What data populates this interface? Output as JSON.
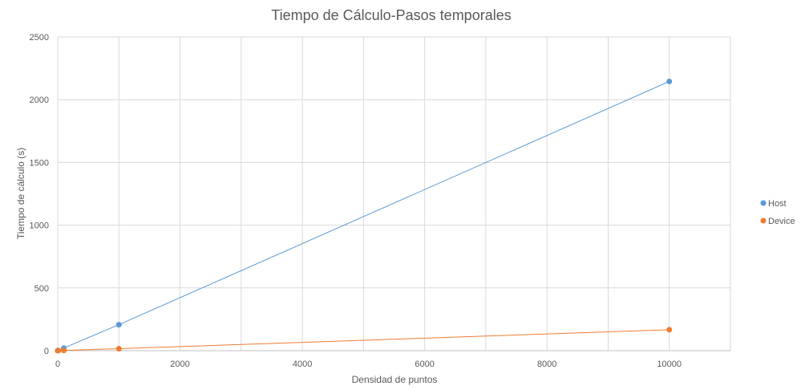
{
  "chart_data": {
    "type": "scatter",
    "title": "Tiempo de Cálculo-Pasos temporales",
    "xlabel": "Densidad de puntos",
    "ylabel": "Tiempo de cálculo (s)",
    "xlim": [
      0,
      11000
    ],
    "ylim": [
      0,
      2500
    ],
    "x_ticks": [
      0,
      2000,
      4000,
      6000,
      8000,
      10000
    ],
    "y_ticks": [
      0,
      500,
      1000,
      1500,
      2000,
      2500
    ],
    "grid": true,
    "legend_position": "right",
    "series": [
      {
        "name": "Host",
        "color": "#5b9bd5",
        "x": [
          0,
          10,
          100,
          1000,
          10000
        ],
        "y": [
          0.2,
          2,
          21,
          207,
          2145
        ]
      },
      {
        "name": "Device",
        "color": "#ed7d31",
        "x": [
          0,
          10,
          100,
          1000,
          10000
        ],
        "y": [
          0.1,
          0.5,
          2,
          16,
          167
        ]
      }
    ]
  }
}
